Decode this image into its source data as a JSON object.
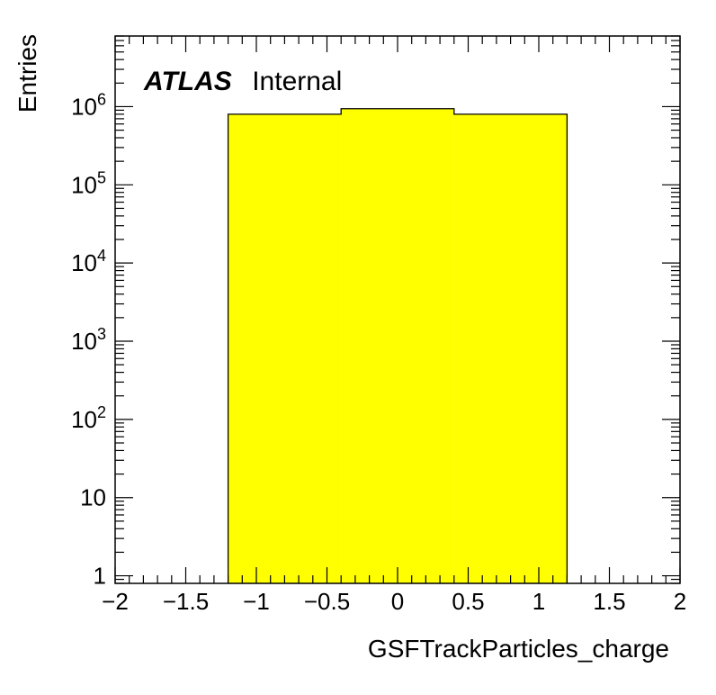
{
  "chart_data": {
    "type": "bar",
    "histogram": true,
    "xlabel": "GSFTrackParticles_charge",
    "ylabel": "Entries",
    "xlim": [
      -2,
      2
    ],
    "ylim": [
      0.8,
      8000000
    ],
    "yscale": "log",
    "x_ticks": [
      -2,
      -1.5,
      -1,
      -0.5,
      0,
      0.5,
      1,
      1.5,
      2
    ],
    "x_tick_labels": [
      "−2",
      "−1.5",
      "−1",
      "−0.5",
      "0",
      "0.5",
      "1",
      "1.5",
      "2"
    ],
    "y_ticks": [
      {
        "value": 1,
        "base": "1",
        "exp": ""
      },
      {
        "value": 10,
        "base": "10",
        "exp": ""
      },
      {
        "value": 100,
        "base": "10",
        "exp": "2"
      },
      {
        "value": 1000,
        "base": "10",
        "exp": "3"
      },
      {
        "value": 10000,
        "base": "10",
        "exp": "4"
      },
      {
        "value": 100000,
        "base": "10",
        "exp": "5"
      },
      {
        "value": 1000000,
        "base": "10",
        "exp": "6"
      }
    ],
    "bins": [
      {
        "low": -1.2,
        "high": -0.4,
        "value": 800000
      },
      {
        "low": -0.4,
        "high": 0.4,
        "value": 940000
      },
      {
        "low": 0.4,
        "high": 1.2,
        "value": 800000
      }
    ],
    "fill_color": "#ffff00",
    "line_color": "#000000",
    "annotation": {
      "bold": "ATLAS",
      "normal": "Internal"
    }
  }
}
